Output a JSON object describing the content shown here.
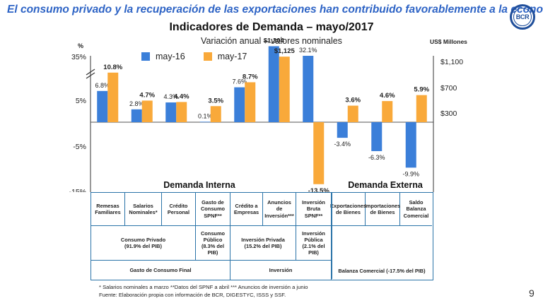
{
  "headline": "El consumo privado y la recuperación de las exportaciones han contribuido favorablemente a la economía",
  "logo_text": "BCR",
  "page_number": "9",
  "colors": {
    "may16": "#3b7fd9",
    "may17": "#f9a93a",
    "border": "#2a73a8",
    "headline": "#2d63c5"
  },
  "chart_data": {
    "type": "bar",
    "title": "Indicadores de Demanda – mayo/2017",
    "subtitle": "Variación anual – valores nominales",
    "left_axis_unit": "%",
    "right_axis_unit": "US$ Millones",
    "left_ticks": [
      "35%",
      "5%",
      "-5%",
      "-15%"
    ],
    "right_ticks": [
      "$1,100",
      "$700",
      "$300"
    ],
    "axis_break": true,
    "categories": [
      "Remesas Familiares",
      "Salarios Nominales*",
      "Crédito Personal",
      "Gasto de Consumo SPNF**",
      "Crédito a Empresas",
      "Anuncios de Inversión***",
      "Inversión Bruta SPNF**",
      "Exportaciones de Bienes",
      "Importaciones de Bienes",
      "Saldo Balanza Comercial"
    ],
    "series": [
      {
        "name": "may-16",
        "values": [
          6.8,
          2.8,
          4.3,
          0.1,
          7.6,
          1304,
          32.1,
          -3.4,
          -6.3,
          -9.9
        ],
        "labels": [
          "6.8%",
          "2.8%",
          "4.3%",
          "0.1%",
          "7.6%",
          "$1,304",
          "32.1%",
          "-3.4%",
          "-6.3%",
          "-9.9%"
        ]
      },
      {
        "name": "may-17",
        "values": [
          10.8,
          4.7,
          4.4,
          3.5,
          8.7,
          1125,
          -13.5,
          3.6,
          4.6,
          5.9
        ],
        "labels": [
          "10.8%",
          "4.7%",
          "4.4%",
          "3.5%",
          "8.7%",
          "$1,125",
          "-13.5%",
          "3.6%",
          "4.6%",
          "5.9%"
        ]
      }
    ],
    "value_axis": [
      "percent",
      "percent",
      "percent",
      "percent",
      "percent",
      "usd_millions",
      "percent",
      "percent",
      "percent",
      "percent"
    ],
    "group_labels": [
      "Demanda Interna",
      "Demanda Externa"
    ]
  },
  "table": {
    "row1": [
      "Remesas\nFamiliares",
      "Salarios\nNominales*",
      "Crédito\nPersonal",
      "Gasto de\nConsumo\nSPNF**",
      "Crédito a\nEmpresas",
      "Anuncios de\nInversión***",
      "Inversión\nBruta SPNF**",
      "Exportaciones\nde Bienes",
      "Importaciones\nde Bienes",
      "Saldo Balanza\nComercial"
    ],
    "row2": [
      "Consumo Privado\n(91.9% del PIB)",
      "Consumo\nPúblico\n(8.3% del PIB)",
      "Inversión Privada\n(15.2% del PIB)",
      "Inversión\nPública\n(2.1% del PIB)"
    ],
    "row3": [
      "Gasto de Consumo Final",
      "Inversión",
      "Balanza Comercial (-17.5% del PIB)"
    ]
  },
  "footnotes": {
    "line1": "* Salarios nominales a marzo    **Datos del SPNF  a abril    *** Anuncios de inversión a junio",
    "line2": "Fuente: Elaboración propia con información de BCR, DIGESTYC, ISSS y SSF."
  }
}
